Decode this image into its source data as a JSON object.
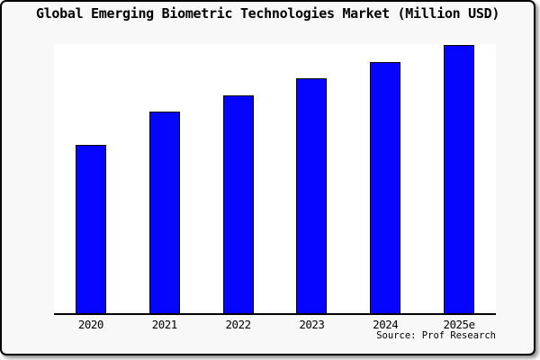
{
  "chart_data": {
    "type": "bar",
    "title": "Global Emerging Biometric Technologies Market (Million USD)",
    "categories": [
      "2020",
      "2021",
      "2022",
      "2023",
      "2024",
      "2025e"
    ],
    "values": [
      62.7,
      75.2,
      81.2,
      87.5,
      93.5,
      100
    ],
    "value_scale": "relative index (y-axis unlabeled; 2025e bar = 100)",
    "ylim": [
      0,
      100.3
    ],
    "xlabel": "",
    "ylabel": "",
    "grid": false,
    "legend": false,
    "source_note": "Source: Prof Research",
    "bar_color": "#0404ff",
    "bar_border_color": "#000000"
  },
  "colors": {
    "canvas_background": "#f8f8f8",
    "plot_background": "#ffffff",
    "frame_border": "#000000",
    "text": "#000000"
  }
}
